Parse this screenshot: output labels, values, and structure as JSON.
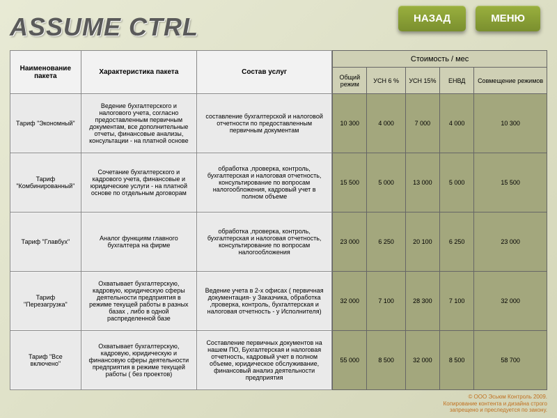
{
  "title": "ASSUME CTRL",
  "nav": {
    "back": "НАЗАД",
    "menu": "МЕНЮ"
  },
  "left": {
    "headers": {
      "name": "Наименование пакета",
      "char": "Характеристика пакета",
      "serv": "Состав услуг"
    },
    "rows": [
      {
        "name": "Тариф \"Экономный\"",
        "char": "Ведение бухгалтерского и налогового учета, согласно предоставленным первичным документам, все дополнительные отчеты, финансовые анализы, консультации - на платной основе",
        "serv": "составление бухгалтерской и налоговой отчетности по предоставленным первичным документам"
      },
      {
        "name": "Тариф \"Комбинированный\"",
        "char": "Сочетание бухгалтерского и кадрового учета, финансовые и юридические услуги - на платной основе по отдельным договорам",
        "serv": "обработка ,проверка, контроль, бухгалтерская и налоговая отчетность, консультирование по вопросам налогообложения, кадровый учет в полном объеме"
      },
      {
        "name": "Тариф \"Главбух\"",
        "char": "Аналог функциям главного бухгалтера на фирме",
        "serv": "обработка ,проверка, контроль, бухгалтерская и налоговая отчетность, консультирование по вопросам налогообложения"
      },
      {
        "name": "Тариф \"Перезагрузка\"",
        "char": "Охватывает бухгалтерскую, кадровую, юридическую сферы деятельности предприятия в режиме текущей работы в разных базах , либо в одной распределенной базе",
        "serv": "Ведение учета в 2-х офисах ( первичная документация- у Заказчика, обработка ,проверка, контроль, бухгалтерская и налоговая отчетность - у Исполнителя)"
      },
      {
        "name": "Тариф \"Все включено\"",
        "char": "Охватывает бухгалтерскую, кадровую, юридическую и финансовую сферы деятельности предприятия в режиме текущей работы ( без проектов)",
        "serv": "Составление первичных документов на нашем ПО, Бухгалтерская и налоговая отчетность, кадровый учет в полном объеме, юридическое обслуживание, финансовый анализ деятельности предприятия"
      }
    ]
  },
  "right": {
    "top": "Стоимость / мес",
    "headers": {
      "c1": "Общий режим",
      "c2": "УСН 6 %",
      "c3": "УСН 15%",
      "c4": "ЕНВД",
      "c5": "Совмещение режимов"
    },
    "rows": [
      [
        "10 300",
        "4 000",
        "7 000",
        "4 000",
        "10 300"
      ],
      [
        "15 500",
        "5 000",
        "13 000",
        "5 000",
        "15 500"
      ],
      [
        "23 000",
        "6 250",
        "20 100",
        "6 250",
        "23 000"
      ],
      [
        "32 000",
        "7 100",
        "28 300",
        "7 100",
        "32 000"
      ],
      [
        "55 000",
        "8 500",
        "32 000",
        "8 500",
        "58 700"
      ]
    ]
  },
  "footer": {
    "l1": "© ООО Эсьюм Контроль 2009.",
    "l2": "Копирование контента и дизайна строго",
    "l3": "запрещено и преследуется по закону."
  },
  "colors": {
    "bg_top": "#e8ead5",
    "bg_bot": "#d4d6b8",
    "btn_top": "#9ab03e",
    "btn_bot": "#7a8f2e",
    "left_th": "#f2f2f2",
    "left_td": "#eaeaea",
    "right_th": "#cfd0b5",
    "right_td": "#a3a77d",
    "footer": "#c07020"
  }
}
